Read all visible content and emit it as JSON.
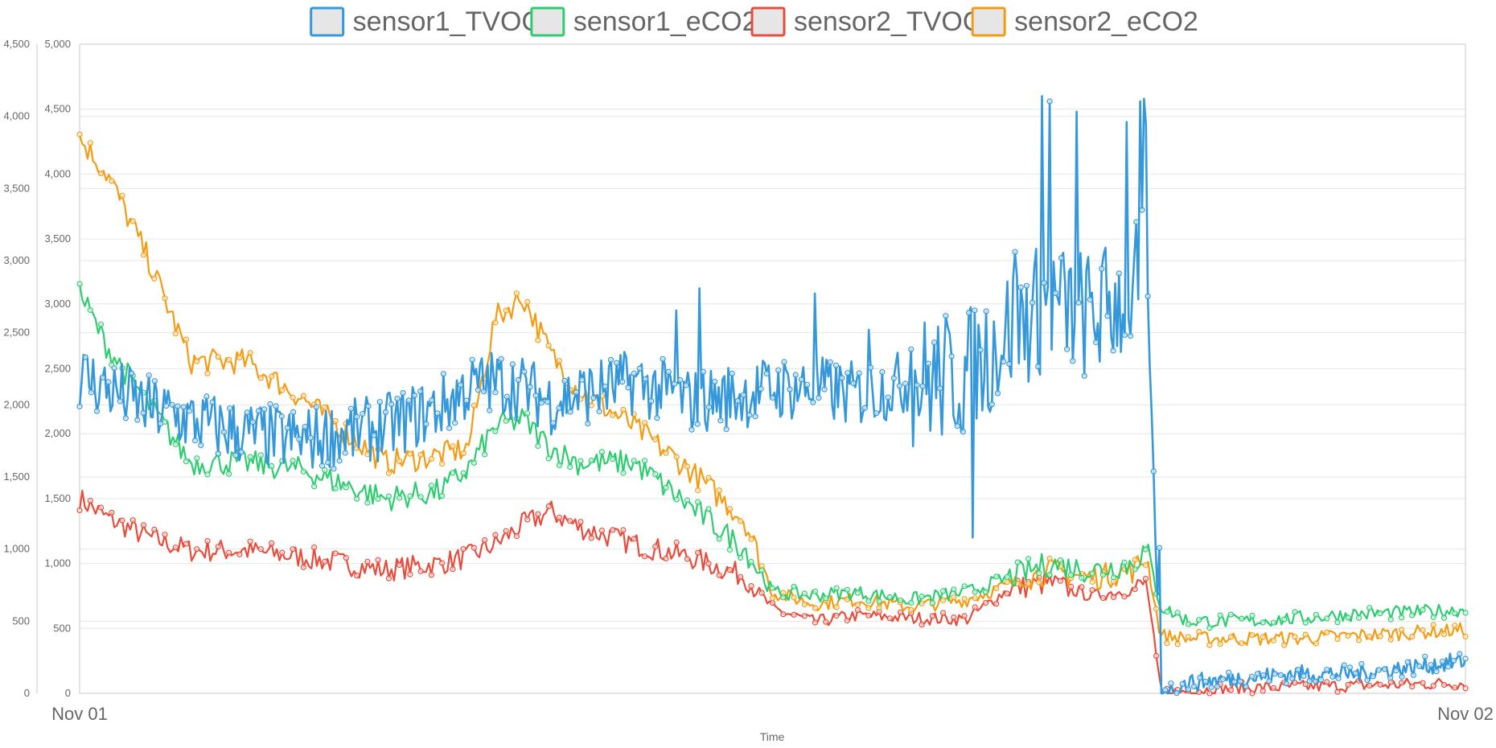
{
  "chart_data": {
    "type": "line",
    "xlabel": "Time",
    "x_ticks": [
      "Nov 01",
      "Nov 02"
    ],
    "y_axes": [
      {
        "id": "left",
        "ylim": [
          0,
          4500
        ],
        "ticks": [
          0,
          500,
          1000,
          1500,
          2000,
          2500,
          3000,
          3500,
          4000,
          4500
        ],
        "tick_labels": [
          "0",
          "500",
          "1,000",
          "1,500",
          "2,000",
          "2,500",
          "3,000",
          "3,500",
          "4,000",
          "4,500"
        ]
      },
      {
        "id": "right",
        "ylim": [
          0,
          5000
        ],
        "ticks": [
          0,
          500,
          1000,
          1500,
          2000,
          2500,
          3000,
          3500,
          4000,
          4500,
          5000
        ],
        "tick_labels": [
          "0",
          "500",
          "1,000",
          "1,500",
          "2,000",
          "2,500",
          "3,000",
          "3,500",
          "4,000",
          "4,500",
          "5,000"
        ]
      }
    ],
    "grid": true,
    "legend": "top",
    "x_fraction": [
      0.0,
      0.02,
      0.05,
      0.08,
      0.12,
      0.16,
      0.22,
      0.26,
      0.28,
      0.3,
      0.32,
      0.34,
      0.36,
      0.4,
      0.44,
      0.48,
      0.5,
      0.53,
      0.56,
      0.6,
      0.64,
      0.67,
      0.7,
      0.73,
      0.76,
      0.77,
      0.78,
      0.8,
      0.84,
      0.88,
      0.92,
      0.96,
      1.0
    ],
    "series": [
      {
        "name": "sensor1_TVOC",
        "axis": "right",
        "color": "#3498db",
        "values": [
          2450,
          2350,
          2200,
          2100,
          2000,
          1950,
          2050,
          2200,
          2350,
          2400,
          2350,
          2250,
          2300,
          2400,
          2250,
          2300,
          2350,
          2350,
          2300,
          2400,
          2450,
          2800,
          3000,
          2900,
          3100,
          3300,
          0,
          80,
          120,
          150,
          150,
          200,
          250
        ],
        "spikes": [
          [
            0.43,
            2950
          ],
          [
            0.447,
            3120
          ],
          [
            0.53,
            3080
          ],
          [
            0.57,
            2800
          ],
          [
            0.6,
            2650
          ],
          [
            0.644,
            1050
          ],
          [
            0.645,
            1200
          ],
          [
            0.675,
            3400
          ],
          [
            0.694,
            4600
          ],
          [
            0.7,
            4560
          ],
          [
            0.72,
            4480
          ],
          [
            0.755,
            4400
          ],
          [
            0.765,
            4560
          ],
          [
            0.768,
            4580
          ],
          [
            0.77,
            4380
          ],
          [
            0.779,
            1120
          ]
        ]
      },
      {
        "name": "sensor1_eCO2",
        "axis": "left",
        "color": "#2ecc71",
        "values": [
          2780,
          2400,
          2000,
          1600,
          1600,
          1550,
          1350,
          1400,
          1550,
          1850,
          1900,
          1700,
          1600,
          1600,
          1300,
          1000,
          700,
          680,
          700,
          650,
          700,
          800,
          900,
          850,
          900,
          1000,
          600,
          500,
          500,
          520,
          550,
          560,
          580
        ]
      },
      {
        "name": "sensor2_TVOC",
        "axis": "right",
        "color": "#e74c3c",
        "values": [
          1500,
          1350,
          1200,
          1100,
          1100,
          1050,
          950,
          1000,
          1050,
          1150,
          1300,
          1400,
          1280,
          1150,
          1050,
          900,
          650,
          550,
          600,
          580,
          570,
          800,
          850,
          750,
          800,
          850,
          0,
          20,
          40,
          50,
          60,
          70,
          80
        ]
      },
      {
        "name": "sensor2_eCO2",
        "axis": "left",
        "color": "#f39c12",
        "values": [
          3850,
          3600,
          3000,
          2300,
          2300,
          2050,
          1600,
          1650,
          1700,
          2600,
          2750,
          2350,
          2100,
          1850,
          1550,
          1200,
          700,
          620,
          650,
          600,
          650,
          750,
          850,
          800,
          850,
          950,
          400,
          380,
          380,
          380,
          400,
          420,
          440
        ]
      }
    ]
  }
}
